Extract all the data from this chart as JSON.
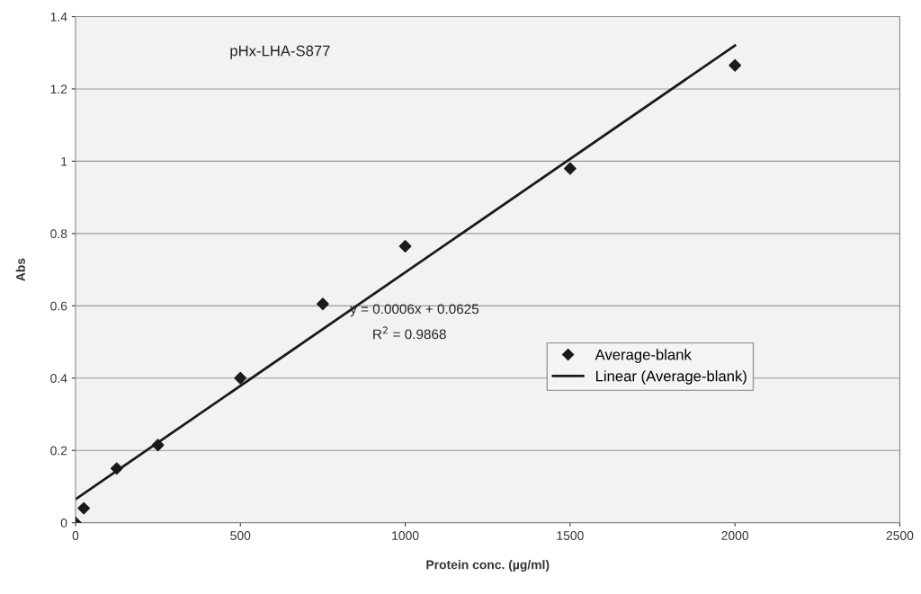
{
  "chart_data": {
    "type": "scatter",
    "title": "pHx-LHA-S877",
    "xlabel": "Protein conc. (µg/ml)",
    "ylabel": "Abs",
    "series": [
      {
        "name": "Average-blank",
        "color": "#1a1a1a",
        "marker": "diamond",
        "x": [
          0,
          25,
          125,
          250,
          500,
          750,
          1000,
          1500,
          2000
        ],
        "values": [
          0,
          0.04,
          0.15,
          0.215,
          0.4,
          0.605,
          0.765,
          0.98,
          1.265
        ]
      },
      {
        "name": "Linear (Average-blank)",
        "type": "line",
        "color": "#1a1a1a",
        "marker": "none",
        "line_style": "solid",
        "x": [
          0,
          2000
        ],
        "values": [
          0.065,
          1.32
        ]
      }
    ],
    "annotations": [
      "y = 0.0006x + 0.0625",
      "R$^{2}$ = 0.9868"
    ],
    "xlim": [
      0,
      2500
    ],
    "xticks": [
      0,
      500,
      1000,
      1500,
      2000,
      2500
    ],
    "ylim": [
      0,
      1.4
    ],
    "yticks": [
      0,
      0.2,
      0.4,
      0.6,
      0.8,
      1,
      1.2,
      1.4
    ],
    "grid": "y",
    "legend": "right"
  }
}
